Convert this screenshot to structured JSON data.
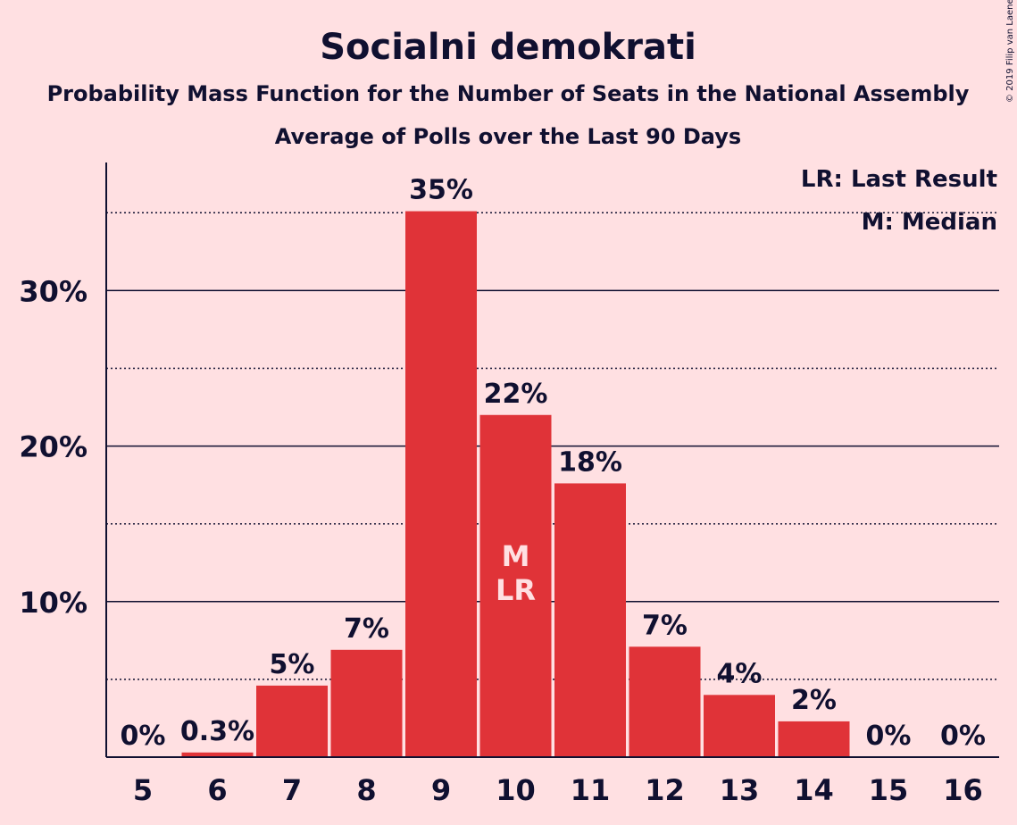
{
  "title": "Socialni demokrati",
  "subtitle": "Probability Mass Function for the Number of Seats in the National Assembly",
  "subtitle2": "Average of Polls over the Last 90 Days",
  "copyright": "© 2019 Filip van Laenen",
  "legend": {
    "lr": "LR: Last Result",
    "m": "M: Median"
  },
  "colors": {
    "bar": "#E03338",
    "background": "#FFE0E2",
    "text": "#101030"
  },
  "chart_data": {
    "type": "bar",
    "categories": [
      "5",
      "6",
      "7",
      "8",
      "9",
      "10",
      "11",
      "12",
      "13",
      "14",
      "15",
      "16"
    ],
    "values": [
      0,
      0.3,
      4.6,
      6.9,
      35.1,
      22.0,
      17.6,
      7.1,
      4.0,
      2.3,
      0,
      0
    ],
    "value_labels": [
      "0%",
      "0.3%",
      "5%",
      "7%",
      "35%",
      "22%",
      "18%",
      "7%",
      "4%",
      "2%",
      "0%",
      "0%"
    ],
    "ylim": [
      0,
      38
    ],
    "y_ticks": [
      10,
      20,
      30
    ],
    "y_tick_labels": [
      "10%",
      "20%",
      "30%"
    ],
    "minor_gridlines": [
      5,
      15,
      25,
      35
    ],
    "markers": [
      {
        "category": "10",
        "lines": [
          "M",
          "LR"
        ]
      }
    ],
    "legend_position": "top-right"
  }
}
